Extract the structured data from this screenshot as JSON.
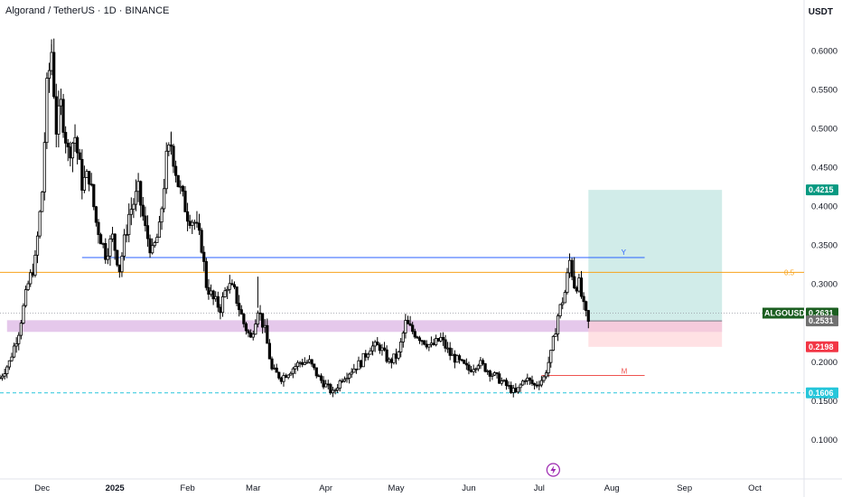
{
  "header": {
    "title": "Algorand / TetherUS · 1D · BINANCE",
    "unit": "USDT"
  },
  "chart_data": {
    "type": "candlestick",
    "symbol": "ALGOUSDT",
    "ylim": [
      0.05,
      0.64
    ],
    "y_ticks": [
      0.1,
      0.15,
      0.2,
      0.25,
      0.3,
      0.35,
      0.4,
      0.45,
      0.5,
      0.55,
      0.6
    ],
    "y_tick_labels": [
      "0.1000",
      "0.1500",
      "0.2000",
      "0.2500",
      "0.3000",
      "0.3500",
      "0.4000",
      "0.4500",
      "0.5000",
      "0.5500",
      "0.6000"
    ],
    "x_range_days": [
      -18,
      325
    ],
    "x_ticks": [
      {
        "label": "Dec",
        "day": 0
      },
      {
        "label": "2025",
        "day": 31
      },
      {
        "label": "Feb",
        "day": 62
      },
      {
        "label": "Mar",
        "day": 90
      },
      {
        "label": "Apr",
        "day": 121
      },
      {
        "label": "May",
        "day": 151
      },
      {
        "label": "Jun",
        "day": 182
      },
      {
        "label": "Jul",
        "day": 212
      },
      {
        "label": "Aug",
        "day": 243
      },
      {
        "label": "Sep",
        "day": 274
      },
      {
        "label": "Oct",
        "day": 304
      }
    ],
    "x_tick_bold": [
      "2025"
    ],
    "price_path": [
      {
        "day": -18,
        "price": 0.18
      },
      {
        "day": -14,
        "price": 0.2
      },
      {
        "day": -10,
        "price": 0.24
      },
      {
        "day": -6,
        "price": 0.3
      },
      {
        "day": -3,
        "price": 0.33
      },
      {
        "day": 0,
        "price": 0.42
      },
      {
        "day": 2,
        "price": 0.55
      },
      {
        "day": 4,
        "price": 0.6
      },
      {
        "day": 6,
        "price": 0.5
      },
      {
        "day": 8,
        "price": 0.53
      },
      {
        "day": 11,
        "price": 0.47
      },
      {
        "day": 14,
        "price": 0.49
      },
      {
        "day": 17,
        "price": 0.43
      },
      {
        "day": 20,
        "price": 0.44
      },
      {
        "day": 23,
        "price": 0.38
      },
      {
        "day": 27,
        "price": 0.34
      },
      {
        "day": 30,
        "price": 0.36
      },
      {
        "day": 33,
        "price": 0.32
      },
      {
        "day": 37,
        "price": 0.39
      },
      {
        "day": 41,
        "price": 0.42
      },
      {
        "day": 44,
        "price": 0.37
      },
      {
        "day": 47,
        "price": 0.34
      },
      {
        "day": 50,
        "price": 0.37
      },
      {
        "day": 53,
        "price": 0.46
      },
      {
        "day": 55,
        "price": 0.48
      },
      {
        "day": 58,
        "price": 0.43
      },
      {
        "day": 62,
        "price": 0.39
      },
      {
        "day": 65,
        "price": 0.38
      },
      {
        "day": 68,
        "price": 0.35
      },
      {
        "day": 70,
        "price": 0.3
      },
      {
        "day": 73,
        "price": 0.28
      },
      {
        "day": 76,
        "price": 0.27
      },
      {
        "day": 79,
        "price": 0.3
      },
      {
        "day": 82,
        "price": 0.29
      },
      {
        "day": 86,
        "price": 0.25
      },
      {
        "day": 89,
        "price": 0.23
      },
      {
        "day": 92,
        "price": 0.27
      },
      {
        "day": 95,
        "price": 0.24
      },
      {
        "day": 98,
        "price": 0.19
      },
      {
        "day": 102,
        "price": 0.18
      },
      {
        "day": 106,
        "price": 0.19
      },
      {
        "day": 110,
        "price": 0.2
      },
      {
        "day": 114,
        "price": 0.2
      },
      {
        "day": 118,
        "price": 0.18
      },
      {
        "day": 121,
        "price": 0.17
      },
      {
        "day": 124,
        "price": 0.16
      },
      {
        "day": 128,
        "price": 0.18
      },
      {
        "day": 132,
        "price": 0.19
      },
      {
        "day": 136,
        "price": 0.2
      },
      {
        "day": 140,
        "price": 0.22
      },
      {
        "day": 144,
        "price": 0.22
      },
      {
        "day": 148,
        "price": 0.2
      },
      {
        "day": 152,
        "price": 0.21
      },
      {
        "day": 155,
        "price": 0.25
      },
      {
        "day": 158,
        "price": 0.24
      },
      {
        "day": 162,
        "price": 0.23
      },
      {
        "day": 166,
        "price": 0.22
      },
      {
        "day": 170,
        "price": 0.23
      },
      {
        "day": 174,
        "price": 0.21
      },
      {
        "day": 178,
        "price": 0.2
      },
      {
        "day": 182,
        "price": 0.19
      },
      {
        "day": 186,
        "price": 0.2
      },
      {
        "day": 190,
        "price": 0.19
      },
      {
        "day": 194,
        "price": 0.18
      },
      {
        "day": 198,
        "price": 0.17
      },
      {
        "day": 202,
        "price": 0.16
      },
      {
        "day": 206,
        "price": 0.18
      },
      {
        "day": 210,
        "price": 0.17
      },
      {
        "day": 214,
        "price": 0.18
      },
      {
        "day": 217,
        "price": 0.21
      },
      {
        "day": 220,
        "price": 0.26
      },
      {
        "day": 223,
        "price": 0.29
      },
      {
        "day": 225,
        "price": 0.33
      },
      {
        "day": 227,
        "price": 0.3
      },
      {
        "day": 229,
        "price": 0.3
      },
      {
        "day": 231,
        "price": 0.27
      },
      {
        "day": 233,
        "price": 0.25
      }
    ],
    "candle_spikes": [
      {
        "day": 4,
        "high": 0.615
      },
      {
        "day": 55,
        "high": 0.495
      },
      {
        "day": 92,
        "high": 0.31
      },
      {
        "day": 227,
        "high": 0.335
      }
    ],
    "levels": {
      "current_price": 0.2631,
      "entry": 0.2531,
      "target": 0.4215,
      "stop": 0.2198,
      "support_dashed": 0.1606,
      "fib_level": 0.3155,
      "fib_label": "0.5",
      "blue_resistance": 0.3345,
      "blue_label": "Y",
      "red_line": 0.183,
      "red_label": "M",
      "purple_zone": [
        0.239,
        0.254
      ]
    },
    "price_tags": [
      {
        "label": "0.4215",
        "value": 0.4215,
        "color": "#089981"
      },
      {
        "label": "0.2631",
        "value": 0.2631,
        "color": "#1b5e20",
        "symbol": "ALGOUSDT"
      },
      {
        "label": "0.2531",
        "value": 0.2531,
        "color": "#707070"
      },
      {
        "label": "0.2198",
        "value": 0.2198,
        "color": "#f23645"
      },
      {
        "label": "0.1606",
        "value": 0.1606,
        "color": "#26c6da"
      }
    ],
    "position_tool": {
      "start_day": 233,
      "end_day": 290,
      "target_color": "#b2dfdb",
      "stop_color": "#ffcdd2"
    },
    "colors": {
      "candle": "#000000",
      "fib": "#f7a21b",
      "blue": "#2962ff",
      "red": "#ef5350",
      "purple": "#e1bee7",
      "support": "#26c6da",
      "grid": "#f0f3fa"
    },
    "icon": "lightning-icon"
  }
}
